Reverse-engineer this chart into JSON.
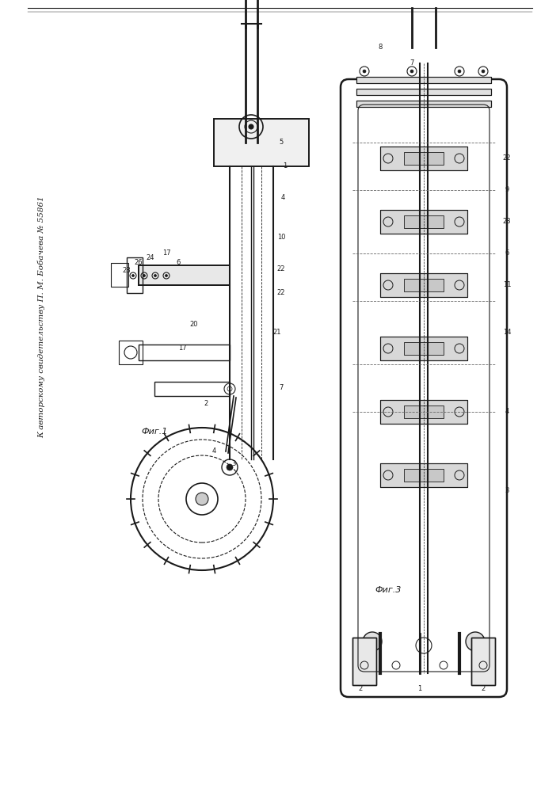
{
  "title": "К авторскому свидетельству П. М. Бобачева № 55861",
  "bg_color": "#ffffff",
  "line_color": "#1a1a1a",
  "fig1_label": "Фиг.1",
  "fig3_label": "Фиг.3",
  "border_color": "#333333"
}
